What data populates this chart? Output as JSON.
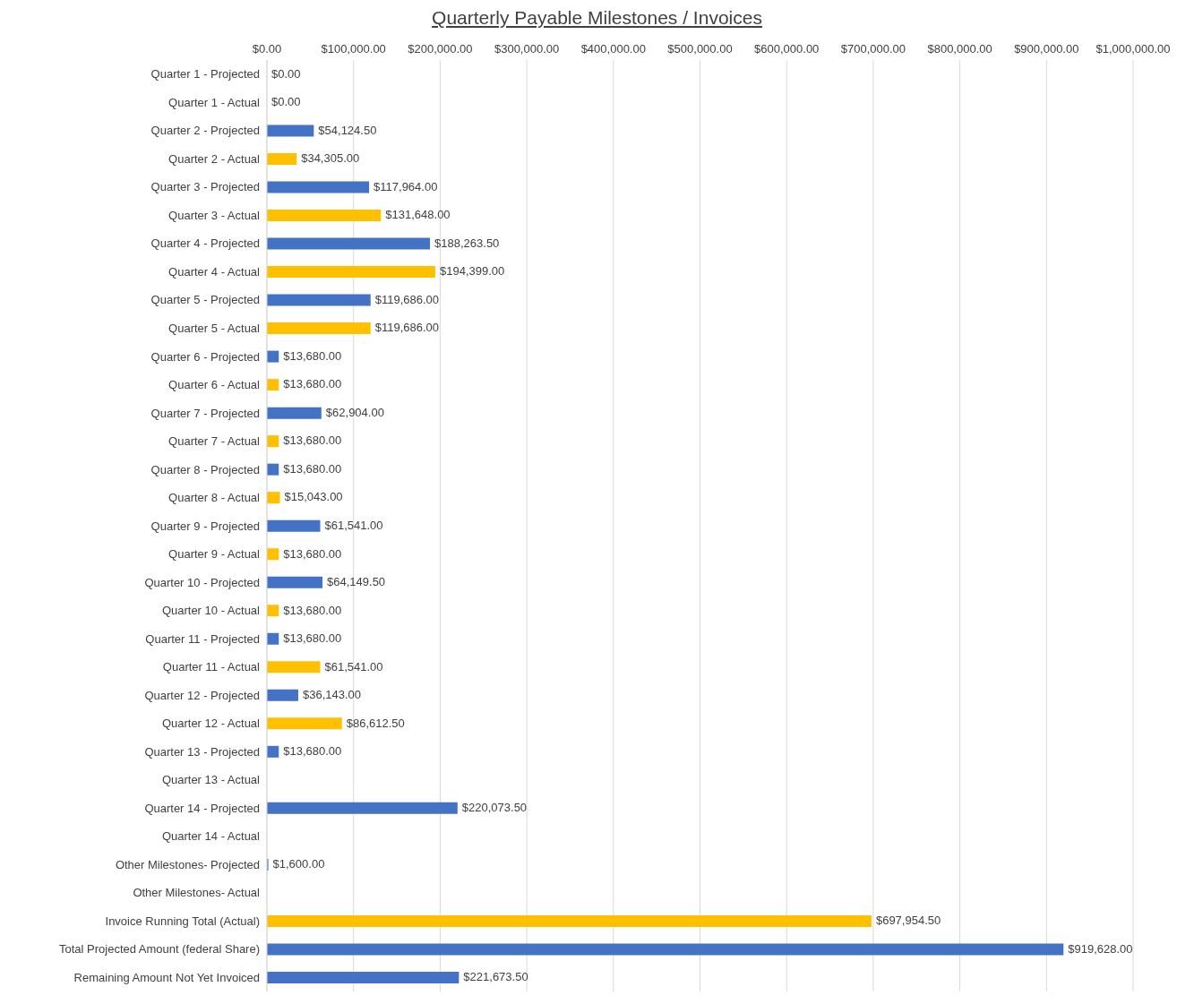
{
  "chart_data": {
    "type": "bar",
    "orientation": "horizontal",
    "title": "Quarterly Payable Milestones / Invoices",
    "categories": [
      "Quarter 1 - Projected",
      "Quarter 1 - Actual",
      "Quarter 2 - Projected",
      "Quarter 2 - Actual",
      "Quarter 3 - Projected",
      "Quarter 3 - Actual",
      "Quarter 4 - Projected",
      "Quarter 4 - Actual",
      "Quarter 5 - Projected",
      "Quarter 5 - Actual",
      "Quarter 6 - Projected",
      "Quarter 6 - Actual",
      "Quarter 7 - Projected",
      "Quarter 7 - Actual",
      "Quarter 8 - Projected",
      "Quarter 8 - Actual",
      "Quarter 9 - Projected",
      "Quarter 9 - Actual",
      "Quarter 10 - Projected",
      "Quarter 10 - Actual",
      "Quarter 11 - Projected",
      "Quarter 11 - Actual",
      "Quarter 12 - Projected",
      "Quarter 12 - Actual",
      "Quarter 13 - Projected",
      "Quarter 13 - Actual",
      "Quarter 14 - Projected",
      "Quarter 14 - Actual",
      "Other Milestones- Projected",
      "Other Milestones- Actual",
      "Invoice Running Total (Actual)",
      "Total Projected Amount (federal Share)",
      "Remaining Amount Not Yet Invoiced"
    ],
    "values": [
      0,
      0,
      54124.5,
      34305,
      117964,
      131648,
      188263.5,
      194399,
      119686,
      119686,
      13680,
      13680,
      62904,
      13680,
      13680,
      15043,
      61541,
      13680,
      64149.5,
      13680,
      13680,
      61541,
      36143,
      86612.5,
      13680,
      null,
      220073.5,
      null,
      1600,
      null,
      697954.5,
      919628,
      221673.5
    ],
    "value_labels": [
      "$0.00",
      "$0.00",
      "$54,124.50",
      "$34,305.00",
      "$117,964.00",
      "$131,648.00",
      "$188,263.50",
      "$194,399.00",
      "$119,686.00",
      "$119,686.00",
      "$13,680.00",
      "$13,680.00",
      "$62,904.00",
      "$13,680.00",
      "$13,680.00",
      "$15,043.00",
      "$61,541.00",
      "$13,680.00",
      "$64,149.50",
      "$13,680.00",
      "$13,680.00",
      "$61,541.00",
      "$36,143.00",
      "$86,612.50",
      "$13,680.00",
      null,
      "$220,073.50",
      null,
      "$1,600.00",
      null,
      "$697,954.50",
      "$919,628.00",
      "$221,673.50"
    ],
    "colors": [
      "#4472c4",
      "#ffc000",
      "#4472c4",
      "#ffc000",
      "#4472c4",
      "#ffc000",
      "#4472c4",
      "#ffc000",
      "#4472c4",
      "#ffc000",
      "#4472c4",
      "#ffc000",
      "#4472c4",
      "#ffc000",
      "#4472c4",
      "#ffc000",
      "#4472c4",
      "#ffc000",
      "#4472c4",
      "#ffc000",
      "#4472c4",
      "#ffc000",
      "#4472c4",
      "#ffc000",
      "#4472c4",
      null,
      "#4472c4",
      null,
      "#4472c4",
      null,
      "#ffc000",
      "#4472c4",
      "#4472c4"
    ],
    "xlim": [
      0,
      1000000
    ],
    "xticks": [
      {
        "value": 0,
        "label": "$0.00"
      },
      {
        "value": 100000,
        "label": "$100,000.00"
      },
      {
        "value": 200000,
        "label": "$200,000.00"
      },
      {
        "value": 300000,
        "label": "$300,000.00"
      },
      {
        "value": 400000,
        "label": "$400,000.00"
      },
      {
        "value": 500000,
        "label": "$500,000.00"
      },
      {
        "value": 600000,
        "label": "$600,000.00"
      },
      {
        "value": 700000,
        "label": "$700,000.00"
      },
      {
        "value": 800000,
        "label": "$800,000.00"
      },
      {
        "value": 900000,
        "label": "$900,000.00"
      },
      {
        "value": 1000000,
        "label": "$1,000,000.00"
      }
    ],
    "grid": "x",
    "legend": false
  }
}
